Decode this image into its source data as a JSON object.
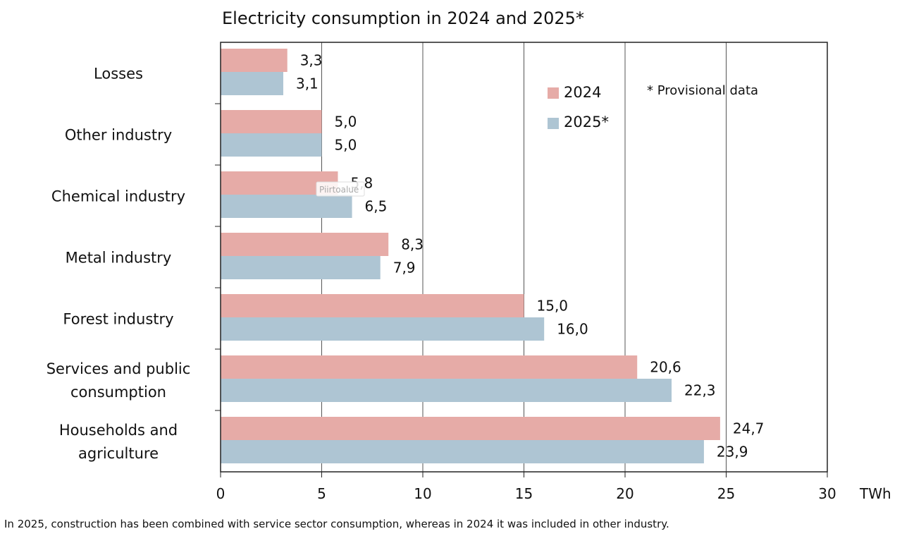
{
  "chart_data": {
    "type": "bar",
    "orientation": "horizontal",
    "title": "Electricity consumption in 2024 and 2025*",
    "categories": [
      "Losses",
      "Other industry",
      "Chemical industry",
      "Metal industry",
      "Forest industry",
      "Services and public consumption",
      "Households and agriculture"
    ],
    "category_lines": [
      [
        "Losses"
      ],
      [
        "Other industry"
      ],
      [
        "Chemical industry"
      ],
      [
        "Metal industry"
      ],
      [
        "Forest industry"
      ],
      [
        "Services and public",
        "consumption"
      ],
      [
        "Households and",
        "agriculture"
      ]
    ],
    "series": [
      {
        "name": "2024",
        "color": "#e6aba7",
        "values": [
          3.3,
          5.0,
          5.8,
          8.3,
          15.0,
          20.6,
          24.7
        ],
        "labels": [
          "3,3",
          "5,0",
          "5,8",
          "8,3",
          "15,0",
          "20,6",
          "24,7"
        ]
      },
      {
        "name": "2025*",
        "color": "#aec5d3",
        "values": [
          3.1,
          5.0,
          6.5,
          7.9,
          16.0,
          22.3,
          23.9
        ],
        "labels": [
          "3,1",
          "5,0",
          "6,5",
          "7,9",
          "16,0",
          "22,3",
          "23,9"
        ]
      }
    ],
    "xlim": [
      0,
      30
    ],
    "xticks": [
      0,
      5,
      10,
      15,
      20,
      25,
      30
    ],
    "xunit": "TWh",
    "grid": "vertical",
    "legend_position": "top-right",
    "annotation": "* Provisional data",
    "tooltip": "Piirtoalue",
    "footnote": "In 2025, construction has been combined with service sector consumption, whereas in 2024 it was included in other industry."
  }
}
